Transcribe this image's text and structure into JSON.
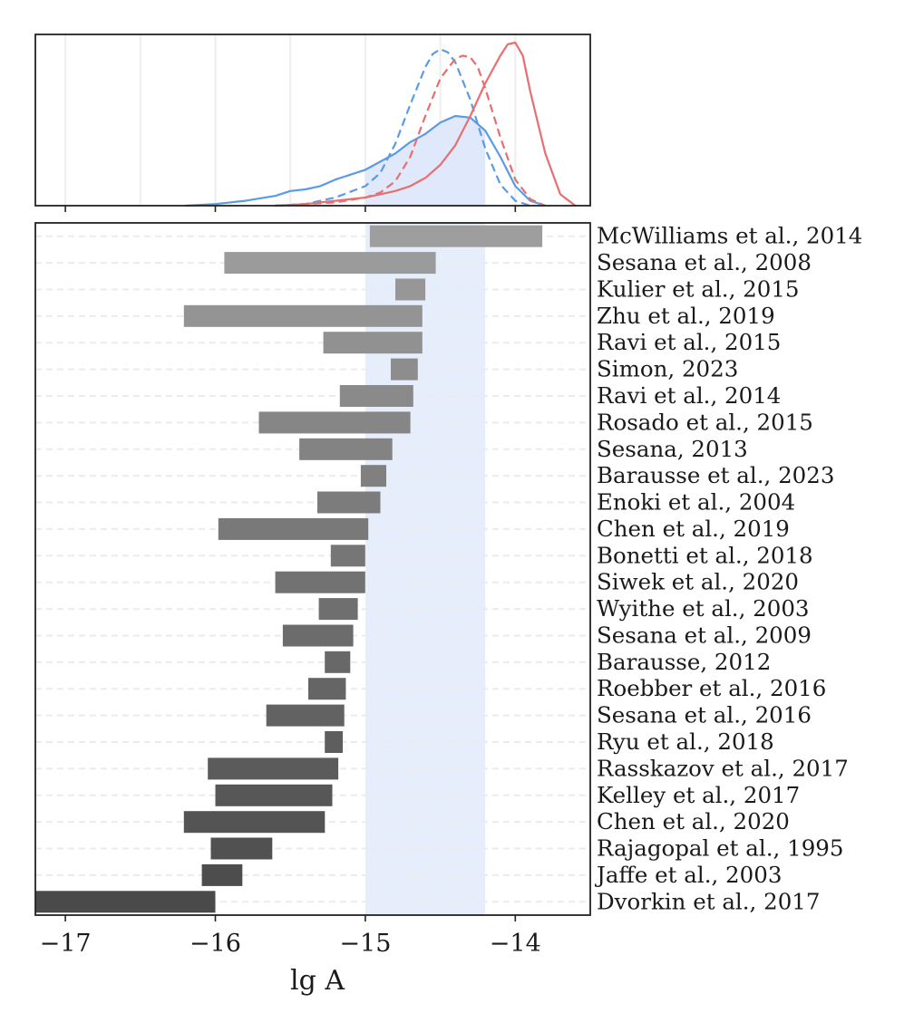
{
  "chart_data": [
    {
      "type": "line",
      "panel": "top",
      "title": "",
      "xlabel": "",
      "ylabel": "",
      "xlim": [
        -17.2,
        -13.5
      ],
      "ylim": [
        0,
        1.05
      ],
      "grid": "vertical, faint",
      "highlight_band": [
        -15.0,
        -14.2
      ],
      "series": [
        {
          "name": "blue-solid",
          "color": "#5b9ae6",
          "dash": "solid",
          "x": [
            -16.2,
            -16.0,
            -15.8,
            -15.6,
            -15.5,
            -15.4,
            -15.3,
            -15.2,
            -15.1,
            -15.0,
            -14.9,
            -14.8,
            -14.7,
            -14.6,
            -14.5,
            -14.4,
            -14.3,
            -14.2,
            -14.1,
            -14.0,
            -13.9,
            -13.8
          ],
          "y": [
            0,
            0.01,
            0.03,
            0.06,
            0.09,
            0.1,
            0.12,
            0.16,
            0.19,
            0.22,
            0.27,
            0.32,
            0.39,
            0.44,
            0.51,
            0.55,
            0.54,
            0.46,
            0.3,
            0.12,
            0.03,
            0
          ]
        },
        {
          "name": "blue-dashed",
          "color": "#5b9ae6",
          "dash": "dashed",
          "x": [
            -15.6,
            -15.4,
            -15.2,
            -15.0,
            -14.9,
            -14.8,
            -14.7,
            -14.6,
            -14.55,
            -14.5,
            -14.45,
            -14.4,
            -14.3,
            -14.2,
            -14.1,
            -14.0,
            -13.9
          ],
          "y": [
            0,
            0.01,
            0.05,
            0.12,
            0.2,
            0.38,
            0.62,
            0.85,
            0.93,
            0.96,
            0.94,
            0.88,
            0.65,
            0.35,
            0.13,
            0.03,
            0
          ]
        },
        {
          "name": "red-dashed",
          "color": "#e86f6f",
          "dash": "dashed",
          "x": [
            -15.6,
            -15.4,
            -15.2,
            -15.0,
            -14.9,
            -14.8,
            -14.7,
            -14.6,
            -14.5,
            -14.4,
            -14.35,
            -14.3,
            -14.25,
            -14.2,
            -14.1,
            -14.0,
            -13.9,
            -13.8
          ],
          "y": [
            0,
            0.01,
            0.02,
            0.05,
            0.08,
            0.15,
            0.3,
            0.55,
            0.78,
            0.9,
            0.92,
            0.91,
            0.85,
            0.72,
            0.42,
            0.16,
            0.04,
            0
          ]
        },
        {
          "name": "red-solid",
          "color": "#e86f6f",
          "dash": "solid",
          "x": [
            -15.6,
            -15.4,
            -15.2,
            -15.0,
            -14.9,
            -14.8,
            -14.7,
            -14.6,
            -14.5,
            -14.4,
            -14.3,
            -14.2,
            -14.1,
            -14.05,
            -14.0,
            -13.95,
            -13.9,
            -13.8,
            -13.7,
            -13.6
          ],
          "y": [
            0,
            0.01,
            0.03,
            0.05,
            0.07,
            0.09,
            0.12,
            0.17,
            0.25,
            0.37,
            0.55,
            0.75,
            0.92,
            0.99,
            1.0,
            0.92,
            0.7,
            0.32,
            0.07,
            0
          ]
        }
      ]
    },
    {
      "type": "bar",
      "panel": "bottom",
      "orientation": "horizontal-range",
      "title": "",
      "xlabel": "lg A",
      "ylabel": "",
      "xlim": [
        -17.2,
        -13.5
      ],
      "xticks": [
        -17,
        -16,
        -15,
        -14
      ],
      "xtick_labels": [
        "−17",
        "−16",
        "−15",
        "−14"
      ],
      "grid": "horizontal dashed, faint",
      "highlight_band": [
        -15.0,
        -14.2
      ],
      "colors": {
        "light": "#9e9e9e",
        "dark": "#4a4a4a",
        "band": "#e6eefc",
        "frame": "#222222"
      },
      "bars": [
        {
          "label": "McWilliams et al., 2014",
          "low": -14.97,
          "high": -13.82
        },
        {
          "label": "Sesana et al., 2008",
          "low": -15.94,
          "high": -14.53
        },
        {
          "label": "Kulier et al., 2015",
          "low": -14.8,
          "high": -14.6
        },
        {
          "label": "Zhu et al., 2019",
          "low": -16.21,
          "high": -14.62
        },
        {
          "label": "Ravi et al., 2015",
          "low": -15.28,
          "high": -14.62
        },
        {
          "label": "Simon, 2023",
          "low": -14.83,
          "high": -14.65
        },
        {
          "label": "Ravi et al., 2014",
          "low": -15.17,
          "high": -14.68
        },
        {
          "label": "Rosado et al., 2015",
          "low": -15.71,
          "high": -14.7
        },
        {
          "label": "Sesana, 2013",
          "low": -15.44,
          "high": -14.82
        },
        {
          "label": "Barausse et al., 2023",
          "low": -15.03,
          "high": -14.86
        },
        {
          "label": "Enoki et al., 2004",
          "low": -15.32,
          "high": -14.9
        },
        {
          "label": "Chen et al., 2019",
          "low": -15.98,
          "high": -14.98
        },
        {
          "label": "Bonetti et al., 2018",
          "low": -15.23,
          "high": -15.0
        },
        {
          "label": "Siwek et al., 2020",
          "low": -15.6,
          "high": -15.0
        },
        {
          "label": "Wyithe et al., 2003",
          "low": -15.31,
          "high": -15.05
        },
        {
          "label": "Sesana et al., 2009",
          "low": -15.55,
          "high": -15.08
        },
        {
          "label": "Barausse, 2012",
          "low": -15.27,
          "high": -15.1
        },
        {
          "label": "Roebber et al., 2016",
          "low": -15.38,
          "high": -15.13
        },
        {
          "label": "Sesana et al., 2016",
          "low": -15.66,
          "high": -15.14
        },
        {
          "label": "Ryu et al., 2018",
          "low": -15.27,
          "high": -15.15
        },
        {
          "label": "Rasskazov et al., 2017",
          "low": -16.05,
          "high": -15.18
        },
        {
          "label": "Kelley et al., 2017",
          "low": -16.0,
          "high": -15.22
        },
        {
          "label": "Chen et al., 2020",
          "low": -16.21,
          "high": -15.27
        },
        {
          "label": "Rajagopal et al., 1995",
          "low": -16.03,
          "high": -15.62
        },
        {
          "label": "Jaffe et al., 2003",
          "low": -16.09,
          "high": -15.82
        },
        {
          "label": "Dvorkin et al., 2017",
          "low": -17.2,
          "high": -16.0
        }
      ]
    }
  ]
}
